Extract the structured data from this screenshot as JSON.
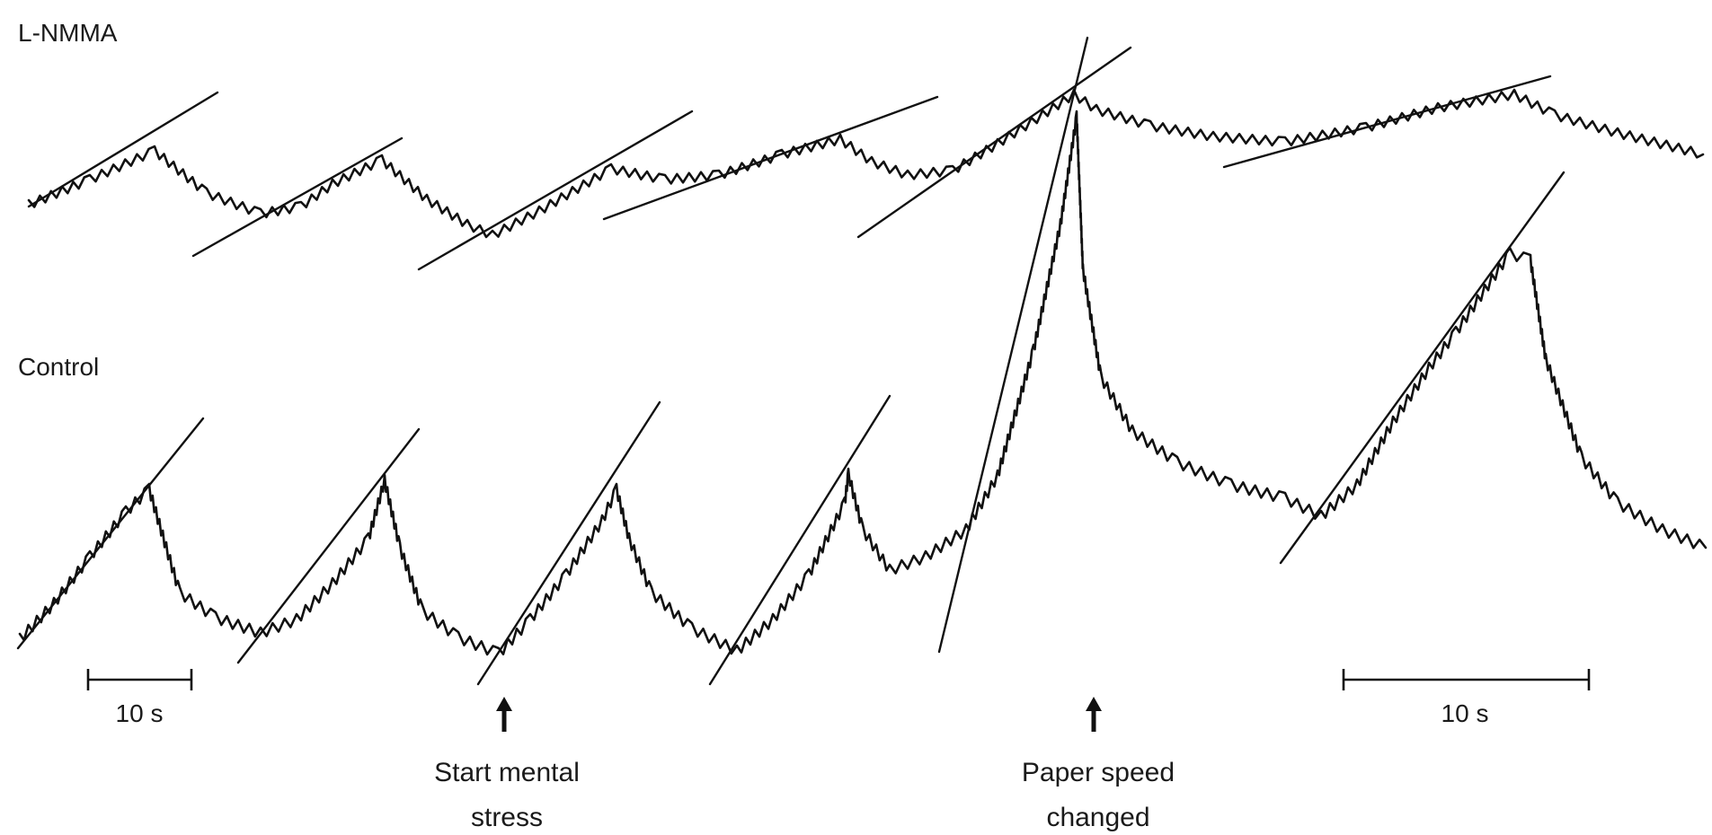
{
  "chart_data": {
    "type": "line",
    "title": "",
    "traces": [
      {
        "label": "L-NMMA"
      },
      {
        "label": "Control"
      }
    ],
    "scale_bars": [
      {
        "label": "10 s"
      },
      {
        "label": "10 s"
      }
    ],
    "annotations": [
      {
        "line1": "Start mental",
        "line2": "stress"
      },
      {
        "line1": "Paper speed",
        "line2": "changed"
      }
    ]
  }
}
